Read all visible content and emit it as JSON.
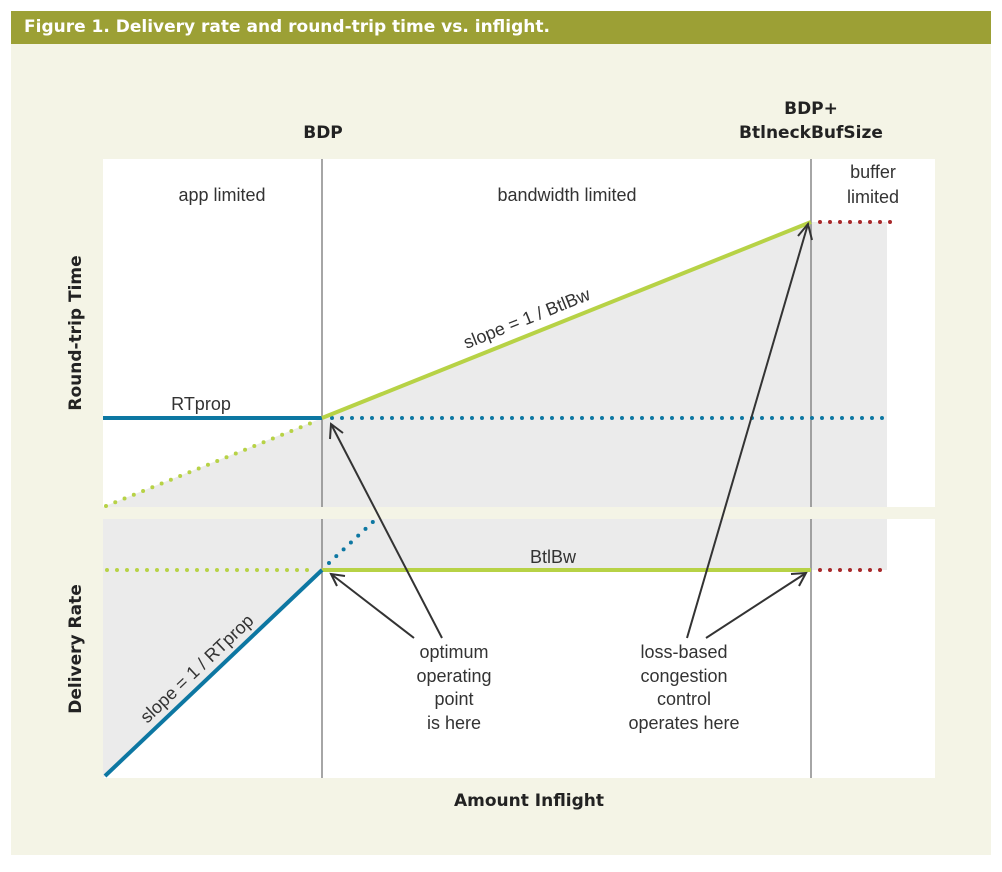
{
  "title": "Figure 1. Delivery rate and round-trip time vs. inflight.",
  "colors": {
    "figure_background": "#f4f4e6",
    "title_bar": "#9ca035",
    "panel": "#ffffff",
    "shaded": "#ebebeb",
    "divider": "#888888",
    "green_line": "#b7d246",
    "blue_line": "#0d77a2",
    "red_dots": "#a8282a",
    "arrow": "#333333"
  },
  "markers": {
    "bdp": "BDP",
    "bdp_plus_line1": "BDP+",
    "bdp_plus_line2": "BtlneckBufSize"
  },
  "regions": {
    "app_limited": "app limited",
    "bandwidth_limited": "bandwidth limited",
    "buffer_limited_line1": "buffer",
    "buffer_limited_line2": "limited"
  },
  "axes": {
    "rtt_ylabel": "Round-trip Time",
    "rate_ylabel": "Delivery Rate",
    "xlabel": "Amount Inflight"
  },
  "lines": {
    "rtprop": "RTprop",
    "btlbw": "BtlBw",
    "rtt_slope": "slope = 1 / BtlBw",
    "rate_slope": "slope = 1 / RTprop"
  },
  "annotations": {
    "optimum": [
      "optimum",
      "operating",
      "point",
      "is here"
    ],
    "loss_based": [
      "loss-based",
      "congestion",
      "control",
      "operates here"
    ]
  }
}
